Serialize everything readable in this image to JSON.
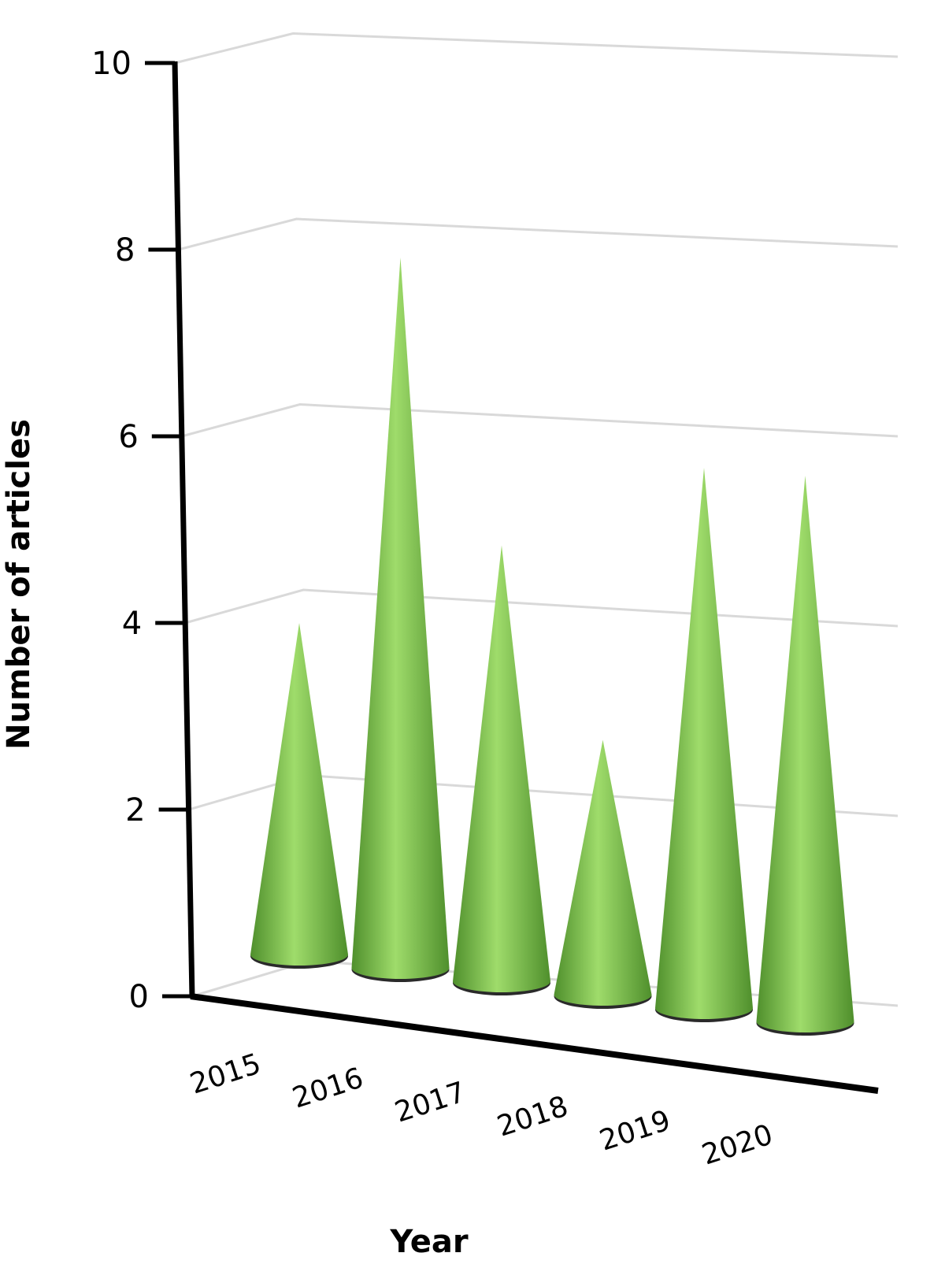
{
  "chart_data": {
    "type": "bar",
    "mark_shape": "cone",
    "categories": [
      "2015",
      "2016",
      "2017",
      "2018",
      "2019",
      "2020"
    ],
    "values": [
      4,
      8,
      5,
      3,
      6,
      6
    ],
    "title": "",
    "xlabel": "Year",
    "ylabel": "Number of articles",
    "ylim": [
      0,
      10
    ],
    "yticks": [
      "0",
      "2",
      "4",
      "6",
      "8",
      "10"
    ],
    "grid": true,
    "legend": "none",
    "colors": {
      "cone": "#7cc04f",
      "cone_light": "#9fdc6b",
      "cone_dark": "#4f8f2c",
      "grid": "#d9d9d9",
      "axis": "#000000"
    }
  }
}
